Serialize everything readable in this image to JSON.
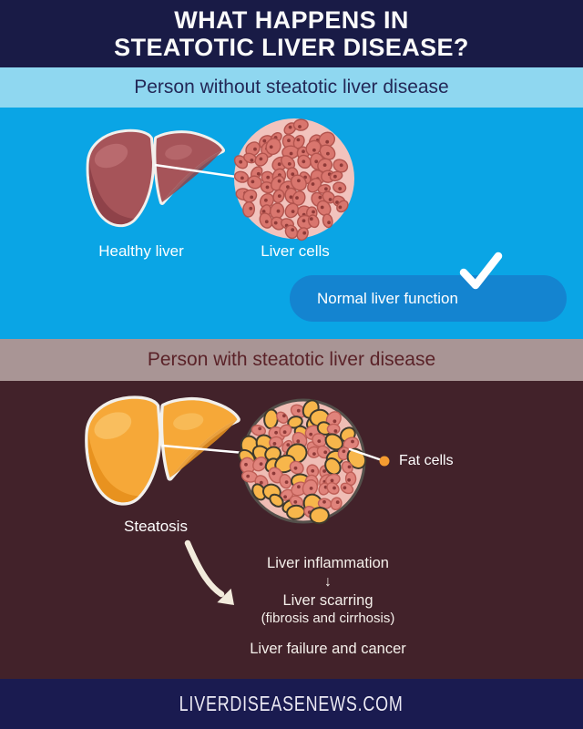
{
  "header": {
    "line1": "WHAT HAPPENS IN",
    "line2": "STEATOTIC LIVER DISEASE?"
  },
  "healthy_section": {
    "band_label": "Person without steatotic liver disease",
    "liver_label": "Healthy liver",
    "cells_label": "Liver cells",
    "pill_label": "Normal liver function"
  },
  "disease_section": {
    "band_label": "Person with steatotic liver disease",
    "liver_label": "Steatosis",
    "fat_cells_label": "Fat cells",
    "progression": {
      "step1": "Liver inflammation",
      "arrow": "↓",
      "step2": "Liver scarring",
      "step2_detail": "(fibrosis and cirrhosis)",
      "outcome": "Liver failure and cancer"
    }
  },
  "footer": {
    "website": "LIVERDISEASENEWS.COM"
  },
  "icons": {
    "check": "checkmark-icon",
    "fat_cell_marker": "orange-dot-icon",
    "curved_arrow": "curved-arrow-icon",
    "down_arrow": "down-arrow-glyph"
  },
  "colors": {
    "header_bg": "#191B46",
    "footer_bg": "#1A1B50",
    "band1_bg": "#8FD7F0",
    "band1_text": "#232857",
    "blue_bg": "#0AA5E5",
    "pill_bg": "#1484D0",
    "band2_bg": "#A99595",
    "band2_text": "#5A2228",
    "maroon_bg": "#42222A",
    "cream_arrow": "#F2EBDC",
    "orange_dot": "#F59C31",
    "healthy_liver": "#A65459",
    "healthy_liver_highlight": "#B96A6E",
    "healthy_liver_shade": "#8F4249",
    "fatty_liver": "#F6A838",
    "fatty_liver_highlight": "#F9BE5E",
    "fatty_liver_shade": "#E8921F",
    "cells_bg": "#F2C3BD",
    "cell_fill": "#D9766E",
    "cell_outline": "#B2544E",
    "cell_nucleus": "#8E3A38",
    "diseased_cells_bg": "#EFBDB5",
    "diseased_cell_fill": "#E0837B",
    "diseased_cell_outline": "#BF5F57",
    "fat_cell_fill": "#F7B64B",
    "fat_cell_outline": "#3E3A2E",
    "diseased_circle_outline": "#54504B"
  }
}
